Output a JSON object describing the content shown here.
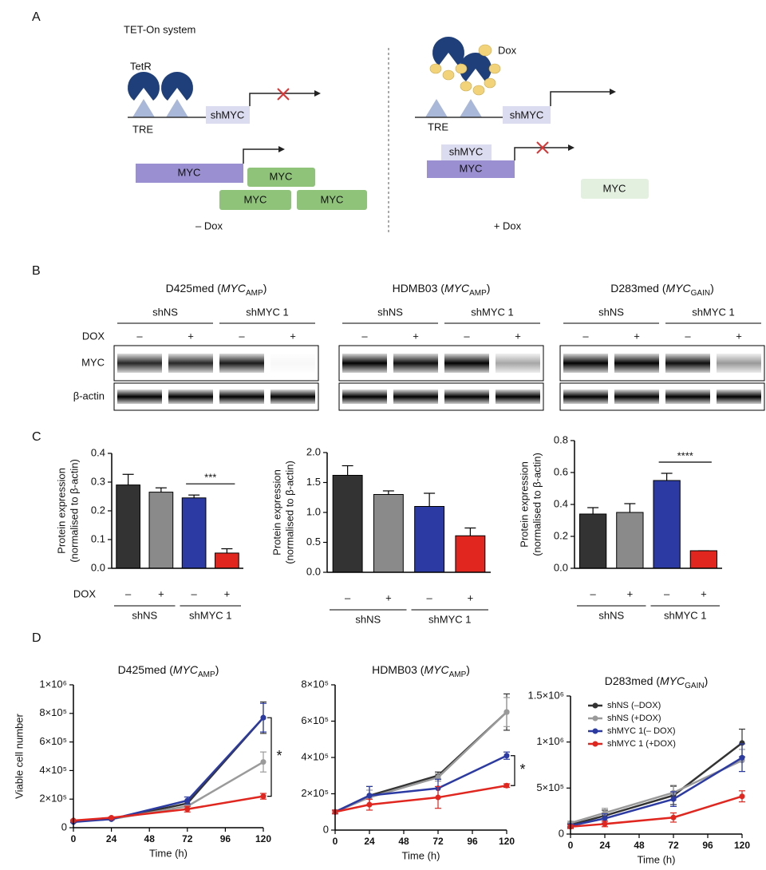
{
  "panel_labels": [
    "A",
    "B",
    "C",
    "D"
  ],
  "panel_a": {
    "title": "TET-On system",
    "left": {
      "tetr": "TetR",
      "tre": "TRE",
      "shmyc": "shMYC",
      "myc": [
        "MYC",
        "MYC",
        "MYC",
        "MYC"
      ],
      "condition": "– Dox"
    },
    "right": {
      "dox": "Dox",
      "tre": "TRE",
      "shmyc": [
        "shMYC",
        "shMYC"
      ],
      "myc": [
        "MYC",
        "MYC"
      ],
      "condition": "+ Dox"
    }
  },
  "panel_b": {
    "blots": [
      {
        "title": [
          "D425med (",
          "MYC",
          "AMP",
          ")"
        ],
        "groups": [
          "shNS",
          "shMYC 1"
        ],
        "row_label": "DOX",
        "lanes": [
          "–",
          "+",
          "–",
          "+"
        ],
        "proteins": [
          "MYC",
          "β-actin"
        ]
      },
      {
        "title": [
          "HDMB03 (",
          "MYC",
          "AMP",
          ")"
        ],
        "groups": [
          "shNS",
          "shMYC 1"
        ],
        "lanes": [
          "–",
          "+",
          "–",
          "+"
        ]
      },
      {
        "title": [
          "D283med (",
          "MYC",
          "GAIN",
          ")"
        ],
        "groups": [
          "shNS",
          "shMYC 1"
        ],
        "lanes": [
          "–",
          "+",
          "–",
          "+"
        ]
      }
    ]
  },
  "chart_data": [
    {
      "type": "bar",
      "ylabel": [
        "Protein expression",
        "(normalised to β-actin)"
      ],
      "categories": [
        "–",
        "+",
        "–",
        "+"
      ],
      "groups": [
        "shNS",
        "shMYC 1"
      ],
      "row_label": "DOX",
      "values": [
        0.29,
        0.265,
        0.245,
        0.053
      ],
      "errors": [
        0.037,
        0.015,
        0.01,
        0.015
      ],
      "colors": [
        "#333333",
        "#8a8a8a",
        "#2b3ba3",
        "#e0261e"
      ],
      "ylim": [
        0,
        0.4
      ],
      "yticks": [
        {
          "value": 0,
          "label": "0.0"
        },
        0.1,
        0.2,
        0.3,
        0.4
      ],
      "annotation": "***"
    },
    {
      "type": "bar",
      "ylabel": [
        "Protein expression",
        "(normalised to β-actin)"
      ],
      "categories": [
        "–",
        "+",
        "–",
        "+"
      ],
      "groups": [
        "shNS",
        "shMYC 1"
      ],
      "values": [
        1.62,
        1.3,
        1.1,
        0.61
      ],
      "errors": [
        0.16,
        0.06,
        0.22,
        0.13
      ],
      "colors": [
        "#333333",
        "#8a8a8a",
        "#2b3ba3",
        "#e0261e"
      ],
      "ylim": [
        0,
        2
      ],
      "yticks": [
        {
          "value": 0,
          "label": "0.0"
        },
        0.5,
        {
          "value": 1,
          "label": "1.0"
        },
        1.5,
        {
          "value": 2,
          "label": "2.0"
        }
      ]
    },
    {
      "type": "bar",
      "ylabel": [
        "Protein expression",
        "(normalised to β-actin)"
      ],
      "categories": [
        "–",
        "+",
        "–",
        "+"
      ],
      "groups": [
        "shNS",
        "shMYC 1"
      ],
      "values": [
        0.34,
        0.35,
        0.55,
        0.11
      ],
      "errors": [
        0.04,
        0.055,
        0.045,
        0
      ],
      "colors": [
        "#333333",
        "#8a8a8a",
        "#2b3ba3",
        "#e0261e"
      ],
      "ylim": [
        0,
        0.8
      ],
      "yticks": [
        {
          "value": 0,
          "label": "0.0"
        },
        0.2,
        0.4,
        0.6,
        0.8
      ],
      "annotation": "****"
    },
    {
      "type": "line",
      "title": [
        "D425med (",
        "MYC",
        "AMP",
        ")"
      ],
      "ylabel": "Viable cell number",
      "xlabel": "Time (h)",
      "x": [
        0,
        24,
        72,
        120
      ],
      "xlim": [
        0,
        120
      ],
      "xticks": [
        0,
        24,
        48,
        72,
        96,
        120
      ],
      "ylim": [
        0,
        1000000
      ],
      "yticks": [
        0,
        {
          "value": 200000,
          "label": "2×10⁵"
        },
        {
          "value": 400000,
          "label": "4×10⁵"
        },
        {
          "value": 600000,
          "label": "6×10⁵"
        },
        {
          "value": 800000,
          "label": "8×10⁵"
        },
        {
          "value": 1000000,
          "label": "1×10⁶"
        }
      ],
      "series": [
        {
          "color": "#333333",
          "values": [
            50000,
            60000,
            170000,
            770000
          ],
          "errors": [
            5000,
            5000,
            20000,
            110000
          ]
        },
        {
          "color": "#9a9a9a",
          "values": [
            45000,
            60000,
            150000,
            460000
          ],
          "errors": [
            5000,
            5000,
            15000,
            70000
          ]
        },
        {
          "color": "#2b3ba3",
          "values": [
            40000,
            60000,
            190000,
            770000
          ],
          "errors": [
            5000,
            5000,
            25000,
            100000
          ]
        },
        {
          "color": "#e0261e",
          "values": [
            50000,
            70000,
            130000,
            220000
          ],
          "errors": [
            5000,
            5000,
            20000,
            20000
          ]
        }
      ],
      "annotation": "*"
    },
    {
      "type": "line",
      "title": [
        "HDMB03 (",
        "MYC",
        "AMP",
        ")"
      ],
      "xlabel": "Time (h)",
      "x": [
        0,
        24,
        72,
        120
      ],
      "xlim": [
        0,
        120
      ],
      "xticks": [
        0,
        24,
        48,
        72,
        96,
        120
      ],
      "ylim": [
        0,
        800000
      ],
      "yticks": [
        0,
        {
          "value": 200000,
          "label": "2×10⁵"
        },
        {
          "value": 400000,
          "label": "4×10⁵"
        },
        {
          "value": 600000,
          "label": "6×10⁵"
        },
        {
          "value": 800000,
          "label": "8×10⁵"
        }
      ],
      "series": [
        {
          "color": "#333333",
          "values": [
            100000,
            190000,
            300000,
            650000
          ],
          "errors": [
            10000,
            50000,
            20000,
            100000
          ]
        },
        {
          "color": "#9a9a9a",
          "values": [
            100000,
            180000,
            290000,
            650000
          ],
          "errors": [
            10000,
            40000,
            20000,
            80000
          ]
        },
        {
          "color": "#2b3ba3",
          "values": [
            100000,
            190000,
            230000,
            410000
          ],
          "errors": [
            10000,
            50000,
            50000,
            20000
          ]
        },
        {
          "color": "#e0261e",
          "values": [
            100000,
            140000,
            180000,
            245000
          ],
          "errors": [
            10000,
            30000,
            60000,
            10000
          ]
        }
      ],
      "annotation": "*"
    },
    {
      "type": "line",
      "title": [
        "D283med (",
        "MYC",
        "GAIN",
        ")"
      ],
      "xlabel": "Time (h)",
      "x": [
        0,
        24,
        72,
        120
      ],
      "xlim": [
        0,
        120
      ],
      "xticks": [
        0,
        24,
        48,
        72,
        96,
        120
      ],
      "ylim": [
        0,
        1500000
      ],
      "yticks": [
        0,
        {
          "value": 500000,
          "label": "5×10⁵"
        },
        {
          "value": 1000000,
          "label": "1×10⁶"
        },
        {
          "value": 1500000,
          "label": "1.5×10⁶"
        }
      ],
      "legend": "upper left",
      "series": [
        {
          "name": "shNS (–DOX)",
          "color": "#333333",
          "values": [
            100000,
            200000,
            420000,
            990000
          ],
          "errors": [
            20000,
            60000,
            100000,
            150000
          ]
        },
        {
          "name": "shNS (+DOX)",
          "color": "#9a9a9a",
          "values": [
            120000,
            230000,
            450000,
            800000
          ],
          "errors": [
            20000,
            50000,
            80000,
            120000
          ]
        },
        {
          "name": "shMYC 1(– DOX)",
          "color": "#2b3ba3",
          "values": [
            90000,
            170000,
            380000,
            830000
          ],
          "errors": [
            20000,
            50000,
            80000,
            150000
          ]
        },
        {
          "name": "shMYC 1 (+DOX)",
          "color": "#e0261e",
          "values": [
            80000,
            110000,
            180000,
            410000
          ],
          "errors": [
            20000,
            30000,
            50000,
            60000
          ]
        }
      ]
    }
  ]
}
